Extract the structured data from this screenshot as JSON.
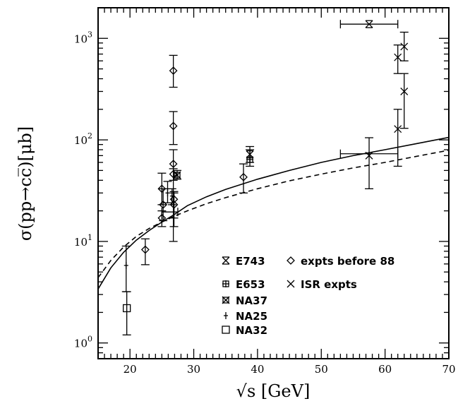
{
  "chart_data": {
    "type": "scatter",
    "xlabel": "√s  [GeV]",
    "ylabel": "σ(pp→cc̅)[μb]",
    "xlim": [
      15,
      70
    ],
    "ylim": [
      0.7,
      2000
    ],
    "yscale": "log",
    "x_ticks": [
      "20",
      "30",
      "40",
      "50",
      "60",
      "70"
    ],
    "y_ticks": [
      {
        "value": 1,
        "mant": "10",
        "exp": "0"
      },
      {
        "value": 10,
        "mant": "10",
        "exp": "1"
      },
      {
        "value": 100,
        "mant": "10",
        "exp": "2"
      },
      {
        "value": 1000,
        "mant": "10",
        "exp": "3"
      }
    ],
    "series": [
      {
        "name": "E743",
        "marker": "bowtie",
        "points": [
          {
            "x": 38.8,
            "y": 72,
            "ylo": 60,
            "yhi": 86
          }
        ]
      },
      {
        "name": "E653",
        "marker": "plus-box",
        "points": [
          {
            "x": 38.8,
            "y": 64,
            "ylo": 55,
            "yhi": 80
          }
        ]
      },
      {
        "name": "NA37",
        "marker": "box-x",
        "points": [
          {
            "x": 27.4,
            "y": 45,
            "ylo": 41,
            "yhi": 50
          }
        ]
      },
      {
        "name": "NA25",
        "marker": "star",
        "points": [
          {
            "x": 19.4,
            "y": 5.8,
            "ylo": 3.2,
            "yhi": 9.0
          },
          {
            "x": 25.9,
            "y": 30,
            "ylo": 24,
            "yhi": 39
          },
          {
            "x": 26.6,
            "y": 28,
            "ylo": 23,
            "yhi": 33
          }
        ]
      },
      {
        "name": "NA32",
        "marker": "square",
        "points": [
          {
            "x": 19.5,
            "y": 2.2,
            "ylo": 1.2,
            "yhi": 3.2
          }
        ]
      },
      {
        "name": "expts before 88",
        "marker": "diamond",
        "points": [
          {
            "x": 22.4,
            "y": 8.3,
            "ylo": 5.9,
            "yhi": 10.6
          },
          {
            "x": 25.0,
            "y": 17,
            "ylo": 14,
            "yhi": 20
          },
          {
            "x": 25.0,
            "y": 33,
            "ylo": 23,
            "yhi": 47
          },
          {
            "x": 25.2,
            "y": 23,
            "ylo": 16,
            "yhi": 33
          },
          {
            "x": 26.8,
            "y": 480,
            "ylo": 330,
            "yhi": 680
          },
          {
            "x": 26.8,
            "y": 137,
            "ylo": 90,
            "yhi": 190
          },
          {
            "x": 26.8,
            "y": 58,
            "ylo": 40,
            "yhi": 80
          },
          {
            "x": 26.8,
            "y": 46,
            "ylo": 10,
            "yhi": 52
          },
          {
            "x": 26.9,
            "y": 26,
            "ylo": 17,
            "yhi": 31
          },
          {
            "x": 26.9,
            "y": 23,
            "ylo": 14,
            "yhi": 30
          },
          {
            "x": 37.8,
            "y": 43,
            "ylo": 30,
            "yhi": 58
          }
        ]
      },
      {
        "name": "ISR expts",
        "marker": "cross",
        "points": [
          {
            "x": 57.5,
            "y": 70,
            "ylo": 33,
            "yhi": 105
          },
          {
            "x": 62.0,
            "y": 650,
            "ylo": 450,
            "yhi": 860
          },
          {
            "x": 62.0,
            "y": 128,
            "ylo": 55,
            "yhi": 200
          },
          {
            "x": 63.0,
            "y": 830,
            "ylo": 600,
            "yhi": 1150
          },
          {
            "x": 63.0,
            "y": 300,
            "ylo": 130,
            "yhi": 450
          }
        ]
      }
    ],
    "x_error_bars": [
      {
        "y": 1380,
        "x1": 53,
        "x2": 62,
        "cx": 57.5
      },
      {
        "y": 73,
        "x1": 53,
        "x2": 62,
        "cx": 57.5
      },
      {
        "y": 19.5,
        "x1": 25,
        "x2": 27.5,
        "cx": 26.5
      }
    ],
    "curves": [
      {
        "style": "solid",
        "x": [
          15,
          17,
          19,
          21,
          23,
          25,
          27,
          29,
          32,
          35,
          40,
          45,
          50,
          55,
          60,
          65,
          70
        ],
        "y": [
          3.4,
          5.5,
          7.8,
          10.3,
          12.8,
          15.5,
          18.5,
          22.5,
          27.5,
          32.5,
          41,
          50,
          60,
          70,
          80,
          92,
          106
        ]
      },
      {
        "style": "dashed",
        "x": [
          15,
          17,
          19,
          21,
          23,
          25,
          27,
          29,
          32,
          35,
          40,
          45,
          50,
          55,
          60,
          65,
          70
        ],
        "y": [
          4.4,
          6.5,
          8.8,
          11.2,
          13.4,
          15.5,
          17.8,
          20.0,
          23.5,
          27,
          33,
          39.5,
          46,
          53,
          60,
          69,
          79
        ]
      }
    ],
    "legend": {
      "placement": "bottom-right",
      "entries": [
        {
          "marker": "bowtie",
          "label": "E743"
        },
        {
          "marker": "diamond",
          "label": "expts before 88"
        },
        {
          "marker": "plus-box",
          "label": "E653"
        },
        {
          "marker": "cross",
          "label": "ISR expts"
        },
        {
          "marker": "box-x",
          "label": "NA37"
        },
        {
          "marker": "star",
          "label": "NA25"
        },
        {
          "marker": "square",
          "label": "NA32"
        }
      ]
    },
    "grid": false
  }
}
